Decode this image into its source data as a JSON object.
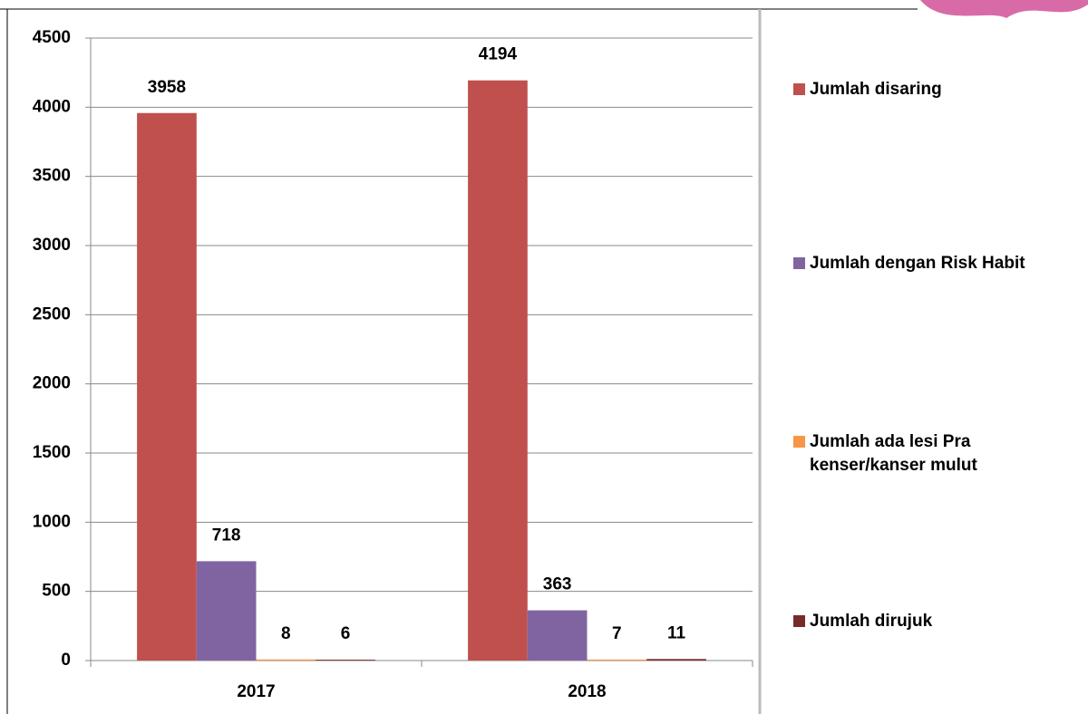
{
  "chart_data": {
    "type": "bar",
    "categories": [
      "2017",
      "2018"
    ],
    "series": [
      {
        "name": "Jumlah disaring",
        "color": "#c0504d",
        "values": [
          3958,
          4194
        ]
      },
      {
        "name": "Jumlah dengan Risk Habit",
        "color": "#8064a2",
        "values": [
          718,
          363
        ]
      },
      {
        "name": "Jumlah ada lesi Pra kenser/kanser mulut",
        "color": "#f79646",
        "values": [
          8,
          7
        ]
      },
      {
        "name": "Jumlah dirujuk",
        "color": "#772c2a",
        "values": [
          6,
          11
        ]
      }
    ],
    "ylim": [
      0,
      4500
    ],
    "yticks": [
      0,
      500,
      1000,
      1500,
      2000,
      2500,
      3000,
      3500,
      4000,
      4500
    ],
    "grid": true,
    "legend": "right"
  }
}
